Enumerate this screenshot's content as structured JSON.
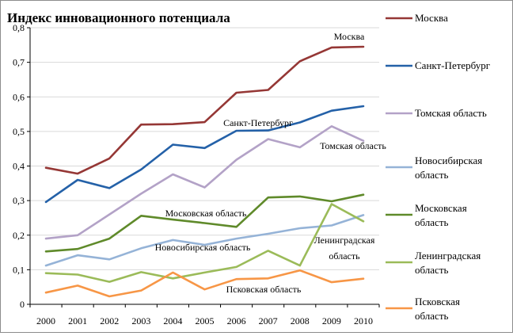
{
  "chart_data": {
    "type": "line",
    "title": "Индекс инновационного потенциала",
    "x": [
      2000,
      2001,
      2002,
      2003,
      2004,
      2005,
      2006,
      2007,
      2008,
      2009,
      2010
    ],
    "x_tick_labels": [
      "2000",
      "2001",
      "2002",
      "2003",
      "2004",
      "2005",
      "2006",
      "2007",
      "2008",
      "2009",
      "2010"
    ],
    "ylim": [
      0,
      0.8
    ],
    "y_ticks": [
      0,
      0.1,
      0.2,
      0.3,
      0.4,
      0.5,
      0.6,
      0.7,
      0.8
    ],
    "y_tick_labels": [
      "0",
      "0,1",
      "0,2",
      "0,3",
      "0,4",
      "0,5",
      "0,6",
      "0,7",
      "0,8"
    ],
    "grid": true,
    "legend_position": "right",
    "series": [
      {
        "name": "Москва",
        "legend_label": "Москва",
        "color": "#953735",
        "values": [
          0.395,
          0.378,
          0.422,
          0.52,
          0.521,
          0.527,
          0.612,
          0.62,
          0.703,
          0.743,
          0.745
        ]
      },
      {
        "name": "Санкт-Петербург",
        "legend_label": "Санкт-Петербург",
        "color": "#2461a8",
        "values": [
          0.296,
          0.36,
          0.336,
          0.39,
          0.462,
          0.452,
          0.502,
          0.503,
          0.526,
          0.56,
          0.573
        ]
      },
      {
        "name": "Томская область",
        "legend_label": "Томская область",
        "color": "#b3a2c7",
        "values": [
          0.19,
          0.2,
          0.26,
          0.32,
          0.376,
          0.338,
          0.418,
          0.478,
          0.454,
          0.515,
          0.473
        ]
      },
      {
        "name": "Новосибирская область",
        "legend_label": "Новосибирская область",
        "color": "#95b3d7",
        "values": [
          0.112,
          0.142,
          0.13,
          0.162,
          0.186,
          0.172,
          0.19,
          0.204,
          0.22,
          0.228,
          0.258
        ]
      },
      {
        "name": "Московская область",
        "legend_label": "Московская область",
        "color": "#5f8a2a",
        "values": [
          0.153,
          0.16,
          0.19,
          0.256,
          0.245,
          0.235,
          0.224,
          0.309,
          0.312,
          0.298,
          0.317
        ]
      },
      {
        "name": "Ленинградская область",
        "legend_label": "Ленинградская область",
        "color": "#9bbb59",
        "values": [
          0.09,
          0.086,
          0.065,
          0.093,
          0.075,
          0.092,
          0.108,
          0.155,
          0.112,
          0.29,
          0.24
        ]
      },
      {
        "name": "Псковская область",
        "legend_label": "Псковская область",
        "color": "#f79646",
        "values": [
          0.034,
          0.054,
          0.023,
          0.04,
          0.092,
          0.043,
          0.073,
          0.075,
          0.098,
          0.064,
          0.074
        ]
      }
    ],
    "annotations": [
      {
        "series": "Москва",
        "text": "Москва"
      },
      {
        "series": "Санкт-Петербург",
        "text": "Санкт-Петербург"
      },
      {
        "series": "Томская область",
        "text": "Томская область"
      },
      {
        "series": "Московская область",
        "text": "Московская область"
      },
      {
        "series": "Новосибирская область",
        "text": "Новосибирская область"
      },
      {
        "series": "Ленинградская область",
        "text": "Ленинградская область"
      },
      {
        "series": "Псковская область",
        "text": "Псковская область"
      }
    ]
  }
}
